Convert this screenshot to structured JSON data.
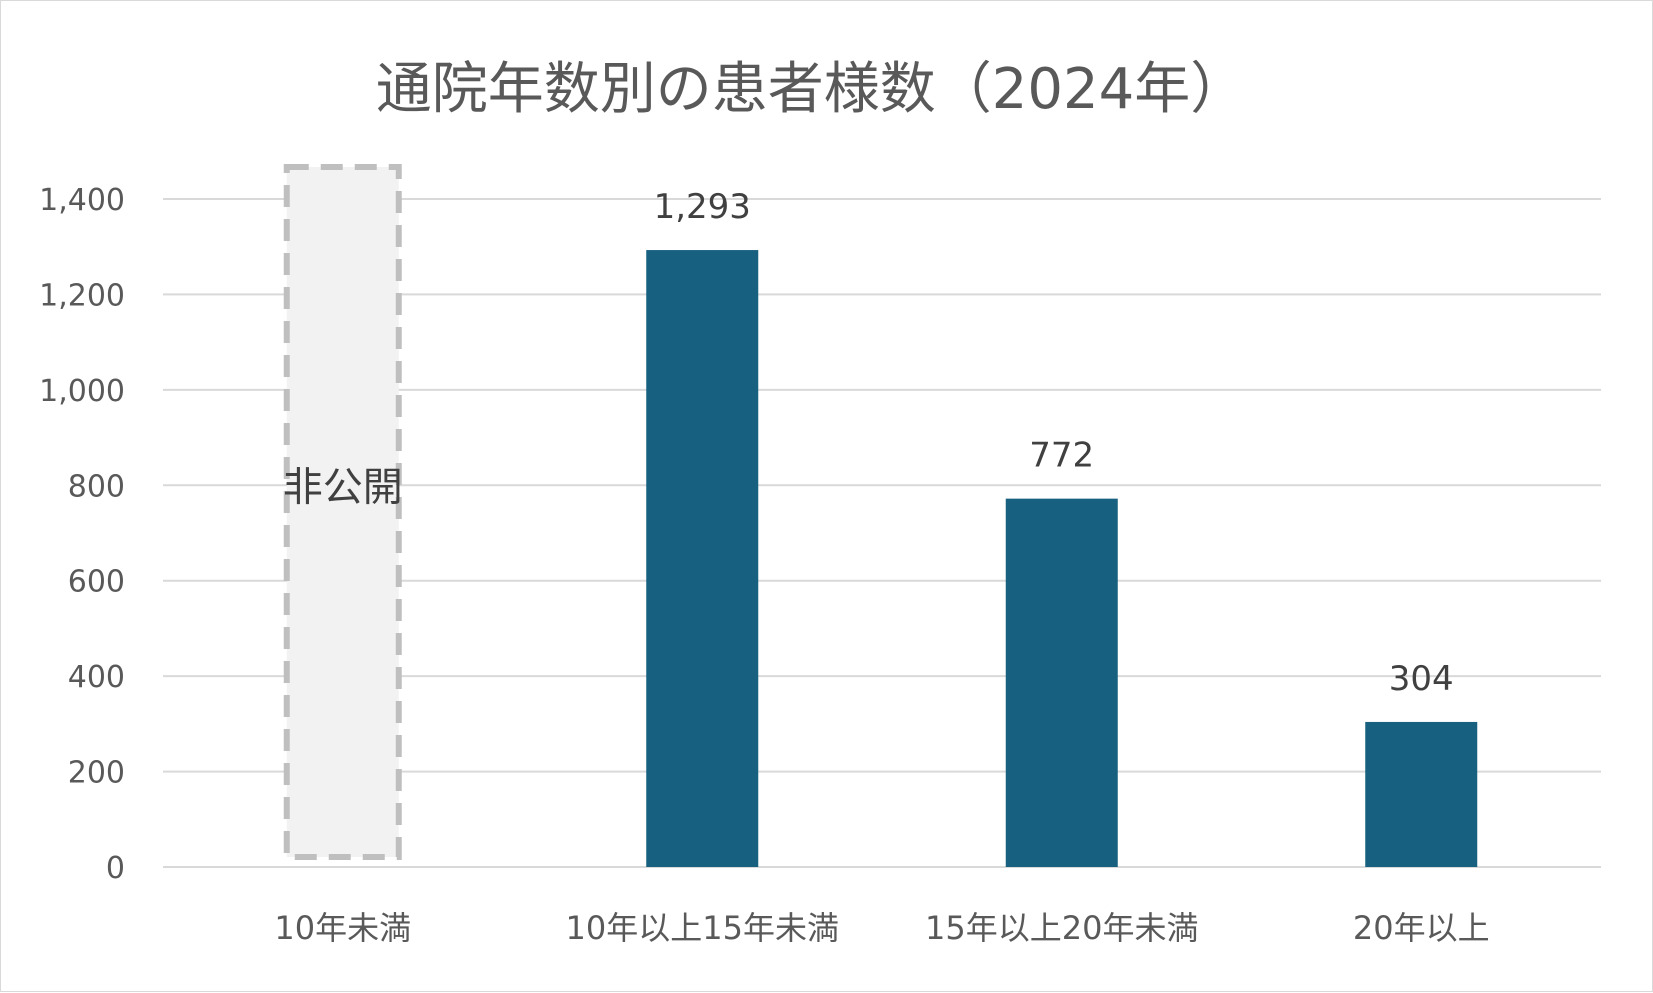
{
  "chart_data": {
    "type": "bar",
    "title": "通院年数別の患者様数（2024年）",
    "categories": [
      "10年未満",
      "10年以上15年未満",
      "15年以上20年未満",
      "20年以上"
    ],
    "values": [
      null,
      1293,
      772,
      304
    ],
    "value_labels": [
      "",
      "1,293",
      "772",
      "304"
    ],
    "undisclosed": {
      "category_index": 0,
      "label": "非公開"
    },
    "y_ticks": [
      "0",
      "200",
      "400",
      "600",
      "800",
      "1,000",
      "1,200",
      "1,400"
    ],
    "ylim": [
      0,
      1400
    ],
    "grid": true,
    "legend": "none",
    "colors": {
      "bar": "#17607f",
      "undisclosed_fill": "#f2f2f2",
      "undisclosed_border": "#bfbfbf",
      "grid": "#d9d9d9"
    }
  }
}
